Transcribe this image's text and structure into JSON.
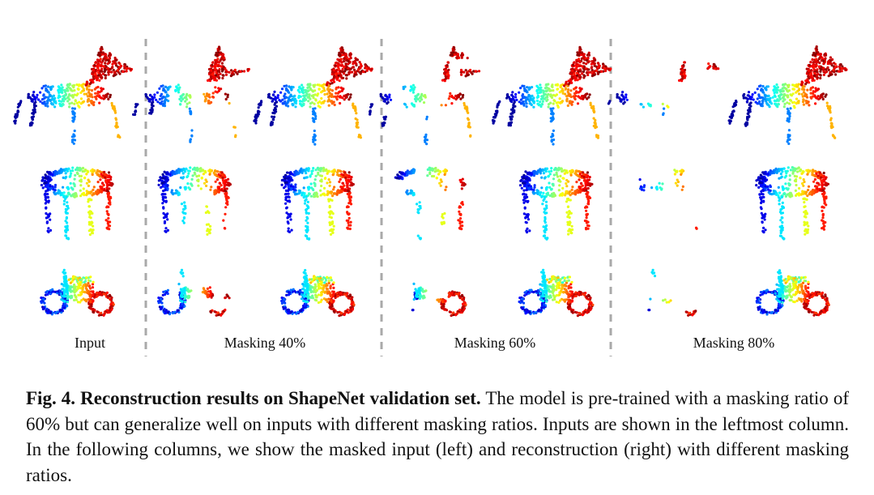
{
  "figure": {
    "column_labels": [
      {
        "id": "input",
        "text": "Input"
      },
      {
        "id": "masking-40",
        "text": "Masking 40%"
      },
      {
        "id": "masking-60",
        "text": "Masking 60%"
      },
      {
        "id": "masking-80",
        "text": "Masking 80%"
      }
    ],
    "rows": [
      "chair",
      "table",
      "motorbike"
    ],
    "panels": [
      {
        "group": "input",
        "kind": "input",
        "keep": 1.0
      },
      {
        "group": "masking-40",
        "kind": "masked",
        "keep": 0.6
      },
      {
        "group": "masking-40",
        "kind": "reconstruction",
        "keep": 1.0
      },
      {
        "group": "masking-60",
        "kind": "masked",
        "keep": 0.4
      },
      {
        "group": "masking-60",
        "kind": "reconstruction",
        "keep": 1.0
      },
      {
        "group": "masking-80",
        "kind": "masked",
        "keep": 0.2
      },
      {
        "group": "masking-80",
        "kind": "reconstruction",
        "keep": 1.0
      }
    ],
    "divider_color": "#a9a9a9",
    "colormap": [
      "#00008f",
      "#0000ff",
      "#0080ff",
      "#00ffff",
      "#80ff80",
      "#ffff00",
      "#ff8000",
      "#ff0000",
      "#800000"
    ]
  },
  "caption": {
    "label": "Fig. 4. Reconstruction results on ShapeNet validation set.",
    "text": "The model is pre-trained with a masking ratio of 60% but can generalize well on inputs with different masking ratios. Inputs are shown in the leftmost column. In the following columns, we show the masked input (left) and reconstruction (right) with different masking ratios."
  }
}
